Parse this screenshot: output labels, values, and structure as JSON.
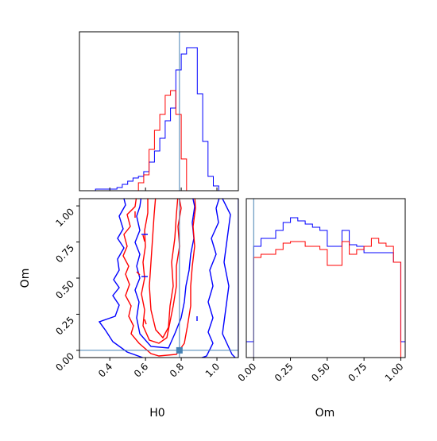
{
  "chart_data": {
    "type": "corner",
    "parameters": [
      "H0",
      "Om"
    ],
    "truth": {
      "H0": 0.79,
      "Om": 0.0
    },
    "series": [
      {
        "color": "#0000ff"
      },
      {
        "color": "#ff0000"
      }
    ],
    "panels": {
      "h0_hist": {
        "xlim": [
          0.23,
          1.12
        ],
        "bin_edges": [
          0.32,
          0.35,
          0.38,
          0.41,
          0.44,
          0.47,
          0.5,
          0.53,
          0.56,
          0.59,
          0.62,
          0.65,
          0.68,
          0.71,
          0.74,
          0.77,
          0.8,
          0.83,
          0.86,
          0.89,
          0.92,
          0.95,
          0.98,
          1.01,
          1.04,
          1.07
        ],
        "blue_counts": [
          1,
          1,
          1,
          1,
          2,
          4,
          6,
          8,
          9,
          12,
          18,
          25,
          33,
          44,
          52,
          76,
          86,
          90,
          90,
          61,
          31,
          9,
          3,
          0,
          0
        ],
        "red_counts": [
          0,
          0,
          0,
          0,
          0,
          0,
          0,
          0,
          5,
          10,
          26,
          38,
          48,
          60,
          63,
          48,
          20,
          0,
          0,
          0,
          0,
          0,
          0,
          0,
          0
        ],
        "ymax": 100
      },
      "om_hist": {
        "xlim": [
          -0.05,
          1.03
        ],
        "bin_edges": [
          -0.05,
          0.0,
          0.05,
          0.1,
          0.15,
          0.2,
          0.25,
          0.3,
          0.35,
          0.4,
          0.45,
          0.5,
          0.55,
          0.6,
          0.65,
          0.7,
          0.75,
          0.8,
          0.85,
          0.9,
          0.95,
          1.0,
          1.03
        ],
        "blue_counts": [
          10,
          70,
          75,
          75,
          80,
          85,
          88,
          86,
          84,
          82,
          80,
          70,
          70,
          80,
          71,
          70,
          66,
          66,
          66,
          66,
          60,
          10
        ],
        "red_counts": [
          0,
          63,
          65,
          65,
          68,
          72,
          73,
          73,
          70,
          70,
          68,
          58,
          58,
          73,
          65,
          68,
          70,
          75,
          72,
          70,
          60,
          0
        ],
        "ymax": 100
      },
      "joint": {
        "xlim": [
          0.23,
          1.12
        ],
        "ylim": [
          -0.05,
          1.05
        ]
      }
    },
    "x_ticks": [
      {
        "value": 0.4,
        "label": "0.4"
      },
      {
        "value": 0.6,
        "label": "0.6"
      },
      {
        "value": 0.8,
        "label": "0.8"
      },
      {
        "value": 1.0,
        "label": "1.0"
      }
    ],
    "om_ticks": [
      {
        "value": 0.0,
        "label": "0.00"
      },
      {
        "value": 0.25,
        "label": "0.25"
      },
      {
        "value": 0.5,
        "label": "0.50"
      },
      {
        "value": 0.75,
        "label": "0.75"
      },
      {
        "value": 1.0,
        "label": "1.00"
      }
    ],
    "xlabel_joint": "H0",
    "ylabel_joint": "Om",
    "xlabel_om": "Om"
  }
}
